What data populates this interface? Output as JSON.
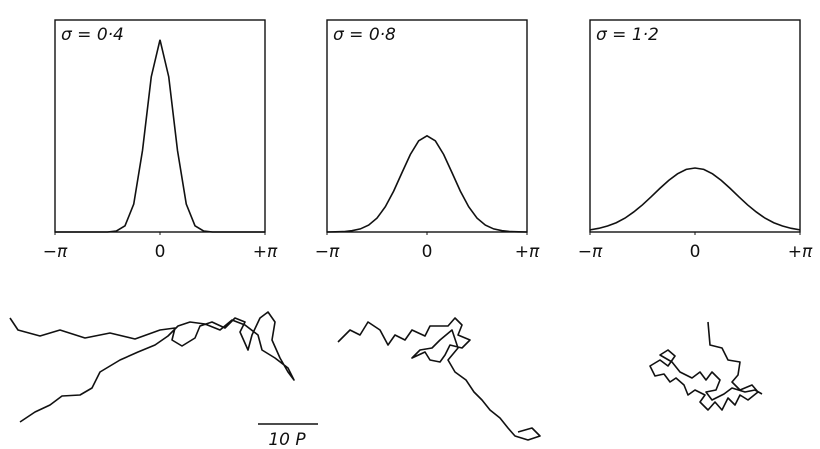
{
  "chart_data": [
    {
      "type": "line",
      "title": "σ = 0·4",
      "x": [
        -3.1416,
        -2.8798,
        -2.618,
        -2.3562,
        -2.0944,
        -1.8326,
        -1.5708,
        -1.309,
        -1.0472,
        -0.7854,
        -0.5236,
        -0.2618,
        0,
        0.2618,
        0.5236,
        0.7854,
        1.0472,
        1.309,
        1.5708,
        1.8326,
        2.0944,
        2.3562,
        2.618,
        2.8798,
        3.1416
      ],
      "values": [
        0,
        0,
        0,
        0,
        0,
        0,
        0,
        0.005,
        0.032,
        0.145,
        0.423,
        0.805,
        0.997,
        0.805,
        0.423,
        0.145,
        0.032,
        0.005,
        0,
        0,
        0,
        0,
        0,
        0,
        0
      ],
      "xlim": [
        -3.1416,
        3.1416
      ],
      "ylim": [
        0,
        1.1
      ],
      "xticks": [
        {
          "value": -3.1416,
          "label": "−π"
        },
        0,
        {
          "value": 3.1416,
          "label": "+π"
        }
      ]
    },
    {
      "type": "line",
      "title": "σ = 0·8",
      "x": [
        -3.1416,
        -2.8798,
        -2.618,
        -2.3562,
        -2.0944,
        -1.8326,
        -1.5708,
        -1.309,
        -1.0472,
        -0.7854,
        -0.5236,
        -0.2618,
        0,
        0.2618,
        0.5236,
        0.7854,
        1.0472,
        1.309,
        1.5708,
        1.8326,
        2.0944,
        2.3562,
        2.618,
        2.8798,
        3.1416
      ],
      "values": [
        0,
        0.001,
        0.002,
        0.007,
        0.016,
        0.036,
        0.072,
        0.131,
        0.212,
        0.308,
        0.402,
        0.473,
        0.499,
        0.473,
        0.402,
        0.308,
        0.212,
        0.131,
        0.072,
        0.036,
        0.016,
        0.007,
        0.002,
        0.001,
        0
      ],
      "xlim": [
        -3.1416,
        3.1416
      ],
      "ylim": [
        0,
        1.1
      ],
      "xticks": [
        {
          "value": -3.1416,
          "label": "−π"
        },
        0,
        {
          "value": 3.1416,
          "label": "+π"
        }
      ]
    },
    {
      "type": "line",
      "title": "σ = 1·2",
      "x": [
        -3.1416,
        -2.8798,
        -2.618,
        -2.3562,
        -2.0944,
        -1.8326,
        -1.5708,
        -1.309,
        -1.0472,
        -0.7854,
        -0.5236,
        -0.2618,
        0,
        0.2618,
        0.5236,
        0.7854,
        1.0472,
        1.309,
        1.5708,
        1.8326,
        2.0944,
        2.3562,
        2.618,
        2.8798,
        3.1416
      ],
      "values": [
        0.011,
        0.019,
        0.031,
        0.048,
        0.072,
        0.104,
        0.141,
        0.183,
        0.227,
        0.268,
        0.302,
        0.325,
        0.332,
        0.325,
        0.302,
        0.268,
        0.227,
        0.183,
        0.141,
        0.104,
        0.072,
        0.048,
        0.031,
        0.019,
        0.011
      ],
      "xlim": [
        -3.1416,
        3.1416
      ],
      "ylim": [
        0,
        1.1
      ],
      "xticks": [
        {
          "value": -3.1416,
          "label": "−π"
        },
        0,
        {
          "value": 3.1416,
          "label": "+π"
        }
      ]
    }
  ],
  "scale_bar": "10 P"
}
